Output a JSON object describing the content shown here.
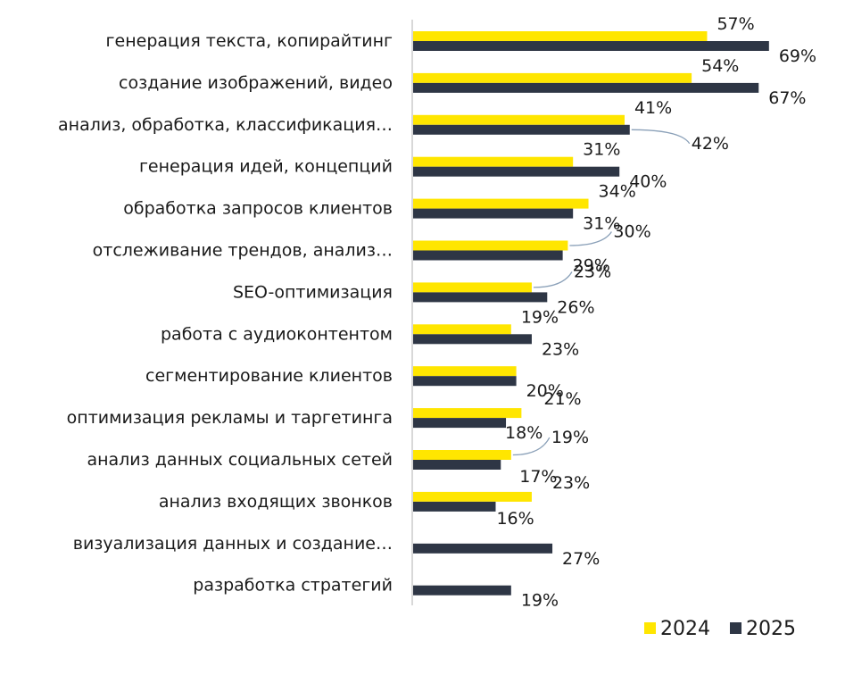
{
  "chart_data": {
    "type": "bar",
    "orientation": "horizontal",
    "categories": [
      "генерация текста, копирайтинг",
      "создание изображений, видео",
      "анализ, обработка, классификация…",
      "генерация идей, концепций",
      "обработка запросов клиентов",
      "отслеживание трендов, анализ…",
      "SEO-оптимизация",
      "работа с аудиоконтентом",
      "сегментирование клиентов",
      "оптимизация рекламы и таргетинга",
      "анализ данных социальных сетей",
      "анализ входящих звонков",
      "визуализация данных и создание…",
      "разработка стратегий"
    ],
    "series": [
      {
        "name": "2024",
        "color": "#FFE600",
        "values": [
          57,
          54,
          41,
          31,
          34,
          30,
          23,
          19,
          20,
          21,
          19,
          23,
          null,
          null
        ],
        "labels": [
          "57%",
          "54%",
          "41%",
          "31%",
          "34%",
          "30%",
          "23%",
          "19%",
          "",
          "21%",
          "19%",
          "23%",
          "",
          ""
        ]
      },
      {
        "name": "2025",
        "color": "#2E3645",
        "values": [
          69,
          67,
          42,
          40,
          31,
          29,
          26,
          23,
          20,
          18,
          17,
          16,
          27,
          19
        ],
        "labels": [
          "69%",
          "67%",
          "42%",
          "40%",
          "31%",
          "29%",
          "26%",
          "23%",
          "20%",
          "18%",
          "17%",
          "16%",
          "27%",
          "19%"
        ]
      }
    ],
    "xlim": [
      0,
      75
    ],
    "grid": false,
    "legend": "bottom-right",
    "title": "",
    "xlabel": "",
    "ylabel": ""
  }
}
